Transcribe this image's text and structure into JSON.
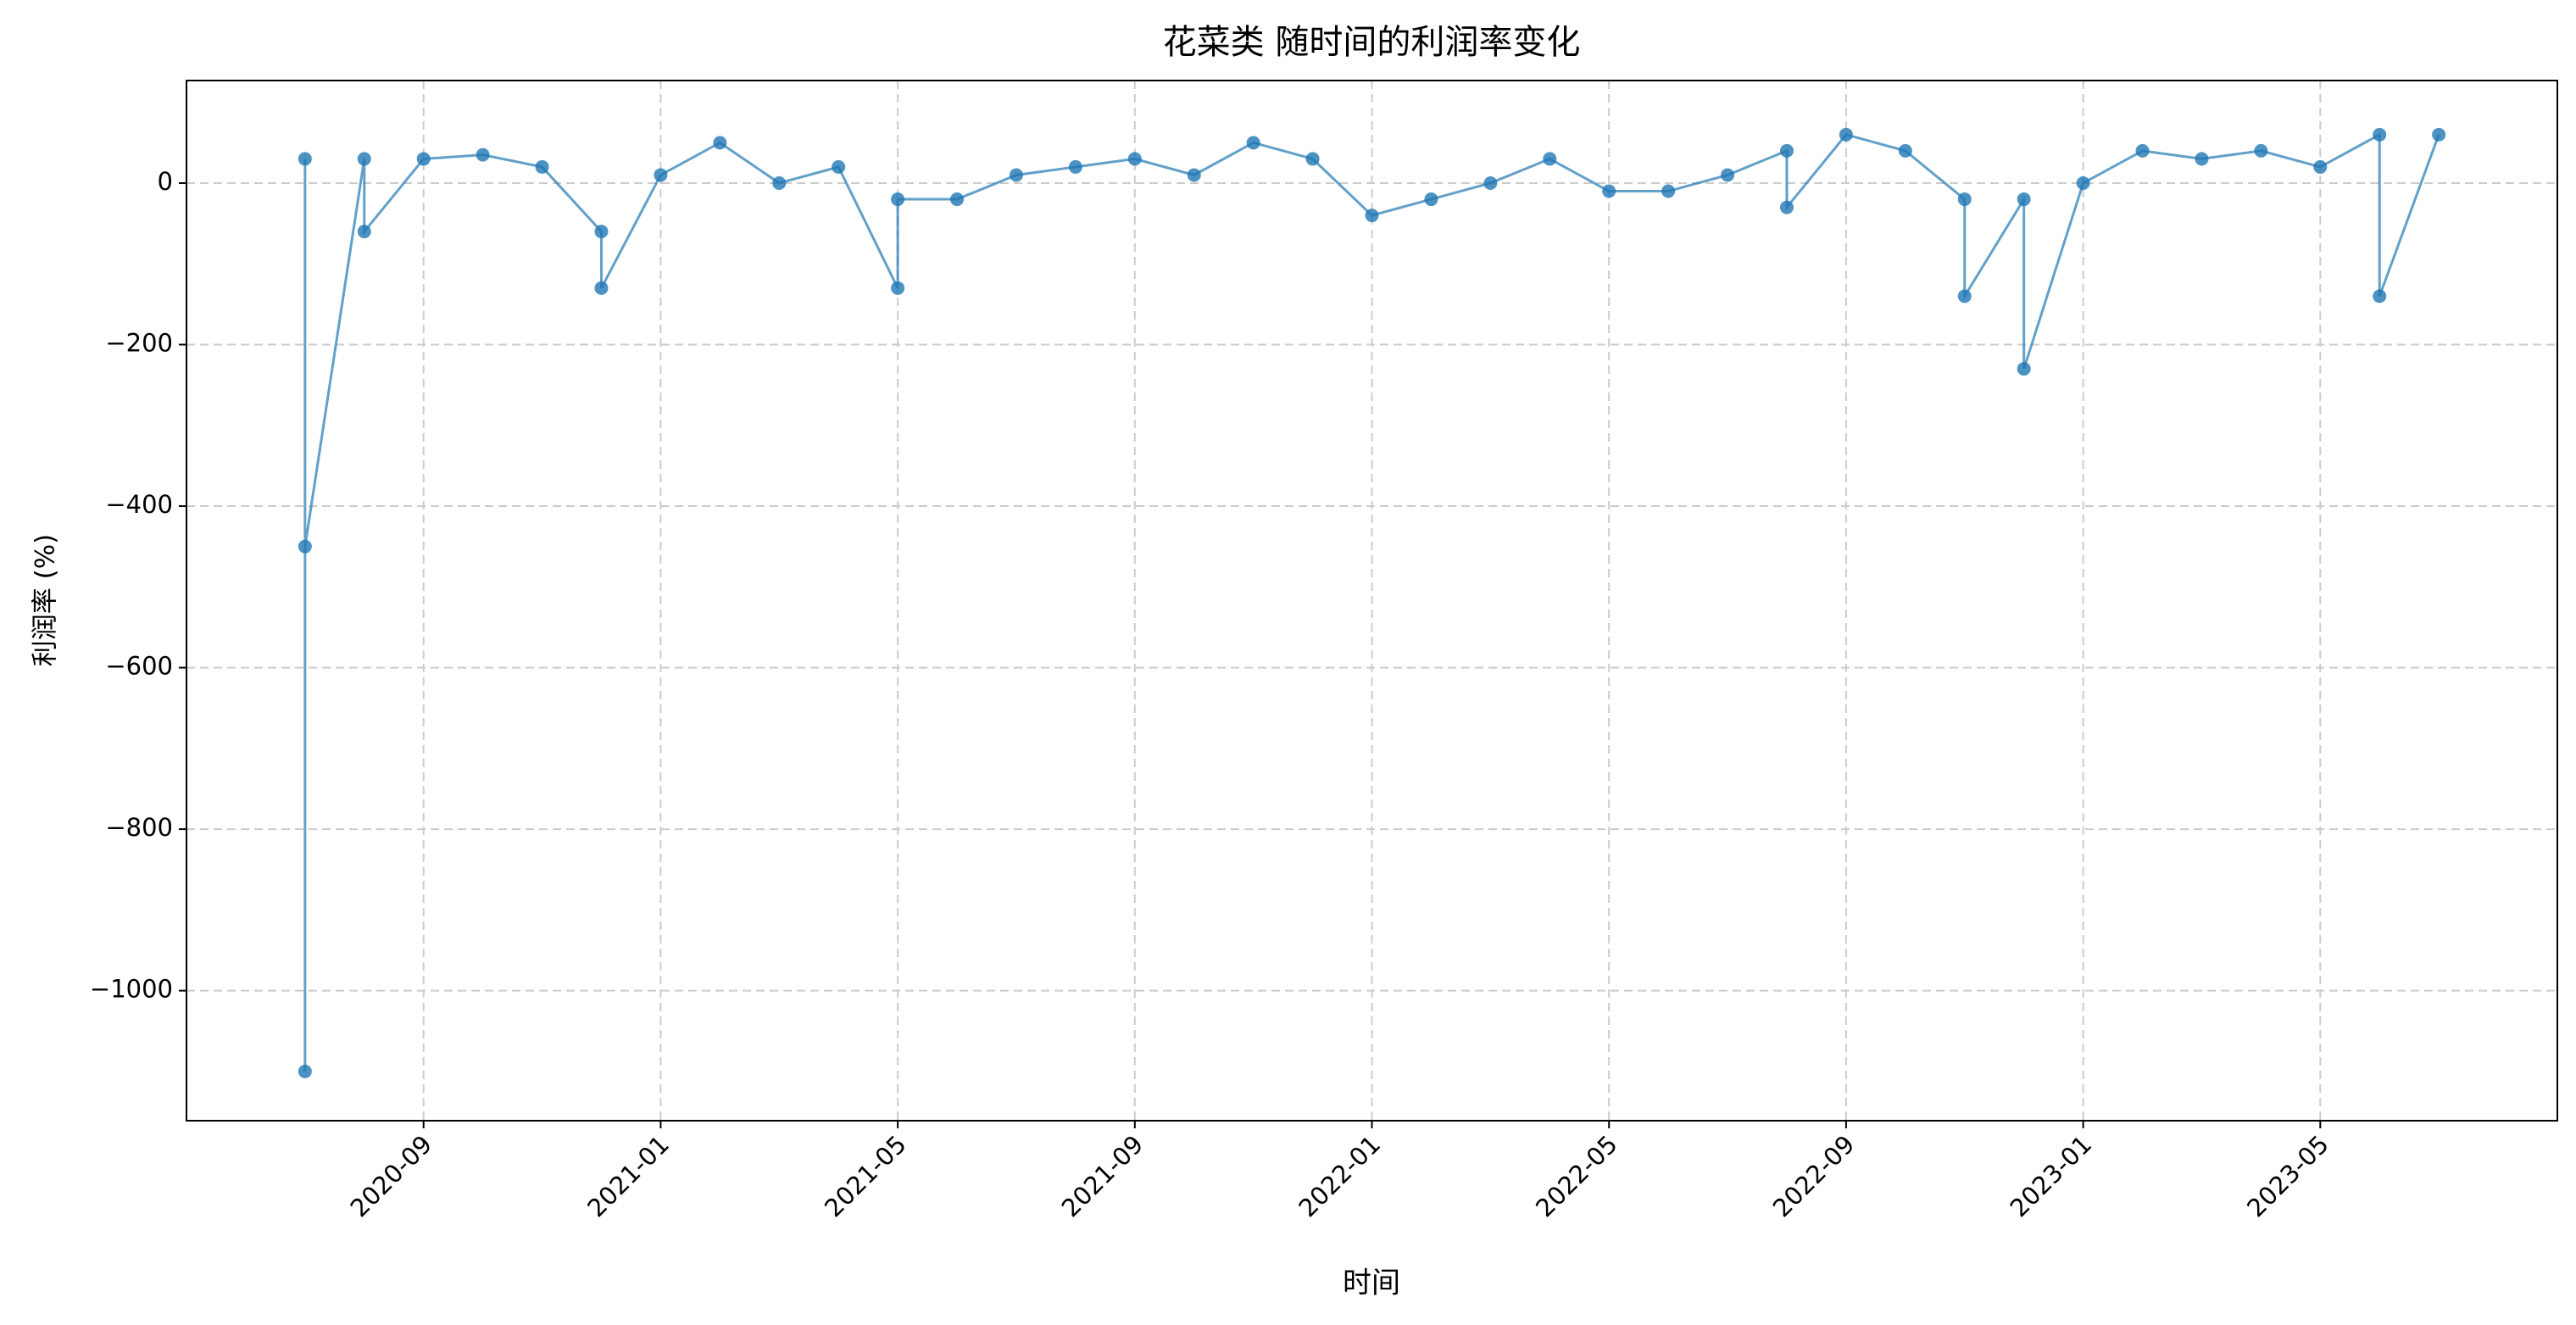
{
  "chart_data": {
    "type": "line",
    "title": "花菜类 随时间的利润率变化",
    "xlabel": "时间",
    "ylabel": "利润率 (%)",
    "color": "#1f77b4",
    "grid": true,
    "x": [
      "2020-07",
      "2020-07",
      "2020-07",
      "2020-08",
      "2020-08",
      "2020-09",
      "2020-10",
      "2020-11",
      "2020-12",
      "2020-12",
      "2021-01",
      "2021-02",
      "2021-03",
      "2021-04",
      "2021-05",
      "2021-05",
      "2021-06",
      "2021-07",
      "2021-08",
      "2021-09",
      "2021-10",
      "2021-11",
      "2021-12",
      "2022-01",
      "2022-02",
      "2022-03",
      "2022-04",
      "2022-05",
      "2022-06",
      "2022-07",
      "2022-08",
      "2022-08",
      "2022-09",
      "2022-10",
      "2022-11",
      "2022-11",
      "2022-12",
      "2022-12",
      "2023-01",
      "2023-02",
      "2023-03",
      "2023-04",
      "2023-05",
      "2023-06",
      "2023-06",
      "2023-07"
    ],
    "values": [
      30,
      -1100,
      -450,
      30,
      -60,
      30,
      35,
      20,
      -60,
      -130,
      10,
      50,
      0,
      20,
      -130,
      -20,
      -20,
      10,
      20,
      30,
      10,
      50,
      30,
      -40,
      -20,
      0,
      30,
      -10,
      -10,
      10,
      40,
      -30,
      60,
      40,
      -20,
      -140,
      -20,
      -230,
      0,
      40,
      30,
      40,
      20,
      60,
      -140,
      60
    ],
    "xlim": [
      "2020-05",
      "2023-09"
    ],
    "xticks": [
      "2020-09",
      "2021-01",
      "2021-05",
      "2021-09",
      "2022-01",
      "2022-05",
      "2022-09",
      "2023-01",
      "2023-05"
    ],
    "ylim": [
      -1161,
      127
    ],
    "yticks": [
      {
        "value": -1000,
        "label": "−1000"
      },
      {
        "value": -800,
        "label": "−800"
      },
      {
        "value": -600,
        "label": "−600"
      },
      {
        "value": -400,
        "label": "−400"
      },
      {
        "value": -200,
        "label": "−200"
      },
      0
    ]
  }
}
